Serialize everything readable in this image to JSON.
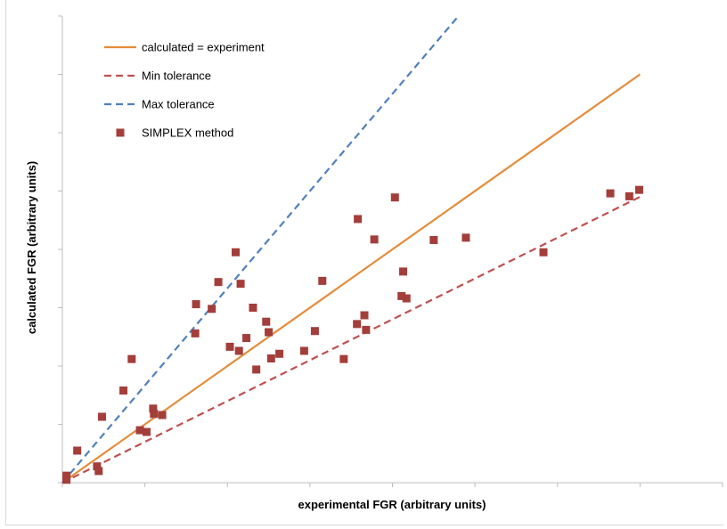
{
  "chart_data": {
    "type": "scatter",
    "xlabel": "experimental FGR (arbitrary units)",
    "ylabel": "calculated FGR (arbitrary units)",
    "xlim": [
      0,
      8
    ],
    "ylim": [
      0,
      8
    ],
    "grid": false,
    "tick_labels_shown": false,
    "legend_position": "top-left",
    "lines": [
      {
        "name": "calculated = experiment",
        "color": "#e58c3a",
        "dash": "solid",
        "points": [
          [
            0,
            0
          ],
          [
            7,
            7
          ]
        ]
      },
      {
        "name": "Min tolerance",
        "color": "#c0504d",
        "dash": "dashed",
        "points": [
          [
            0,
            0
          ],
          [
            7,
            4.9
          ]
        ]
      },
      {
        "name": "Max tolerance",
        "color": "#4f81bd",
        "dash": "dashed",
        "points": [
          [
            0,
            0
          ],
          [
            4.8,
            8.0
          ]
        ]
      }
    ],
    "series": [
      {
        "name": "SIMPLEX method",
        "color": "#a33e3b",
        "marker": "square",
        "points": [
          [
            0.05,
            0.05
          ],
          [
            0.05,
            0.12
          ],
          [
            0.18,
            0.55
          ],
          [
            0.42,
            0.28
          ],
          [
            0.44,
            0.2
          ],
          [
            0.48,
            1.13
          ],
          [
            0.74,
            1.58
          ],
          [
            0.84,
            2.12
          ],
          [
            0.94,
            0.9
          ],
          [
            1.02,
            0.87
          ],
          [
            1.1,
            1.27
          ],
          [
            1.11,
            1.18
          ],
          [
            1.21,
            1.16
          ],
          [
            1.61,
            2.56
          ],
          [
            1.62,
            3.06
          ],
          [
            1.81,
            2.98
          ],
          [
            1.89,
            3.44
          ],
          [
            2.03,
            2.33
          ],
          [
            2.1,
            3.95
          ],
          [
            2.14,
            2.26
          ],
          [
            2.16,
            3.41
          ],
          [
            2.23,
            2.48
          ],
          [
            2.31,
            3.0
          ],
          [
            2.35,
            1.94
          ],
          [
            2.47,
            2.76
          ],
          [
            2.5,
            2.58
          ],
          [
            2.53,
            2.13
          ],
          [
            2.63,
            2.21
          ],
          [
            2.93,
            2.26
          ],
          [
            3.06,
            2.6
          ],
          [
            3.15,
            3.46
          ],
          [
            3.41,
            2.12
          ],
          [
            3.57,
            2.72
          ],
          [
            3.58,
            4.52
          ],
          [
            3.66,
            2.87
          ],
          [
            3.68,
            2.62
          ],
          [
            3.78,
            4.17
          ],
          [
            4.03,
            4.89
          ],
          [
            4.11,
            3.2
          ],
          [
            4.13,
            3.62
          ],
          [
            4.17,
            3.16
          ],
          [
            4.5,
            4.16
          ],
          [
            4.89,
            4.2
          ],
          [
            5.83,
            3.95
          ],
          [
            6.64,
            4.96
          ],
          [
            6.87,
            4.91
          ],
          [
            6.99,
            5.02
          ]
        ]
      }
    ]
  }
}
